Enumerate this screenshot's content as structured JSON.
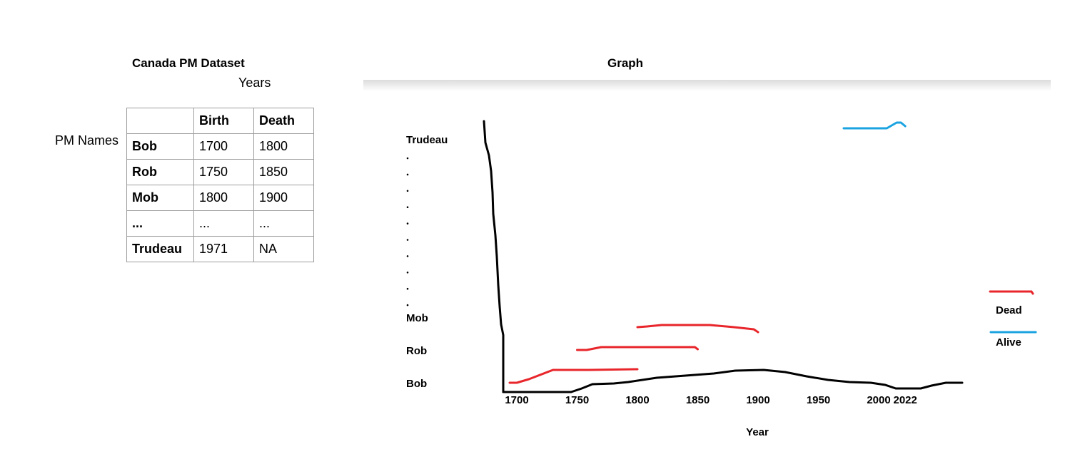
{
  "dataset": {
    "title": "Canada PM Dataset",
    "years_label": "Years",
    "row_label": "PM Names",
    "columns": [
      "",
      "Birth",
      "Death"
    ],
    "rows": [
      [
        "Bob",
        "1700",
        "1800"
      ],
      [
        "Rob",
        "1750",
        "1850"
      ],
      [
        "Mob",
        "1800",
        "1900"
      ],
      [
        "...",
        "...",
        "..."
      ],
      [
        "Trudeau",
        "1971",
        "NA"
      ]
    ]
  },
  "graph": {
    "title": "Graph",
    "y_labels": [
      "Trudeau",
      "Mob",
      "Rob",
      "Bob"
    ],
    "x_ticks": [
      "1700",
      "1750",
      "1800",
      "1850",
      "1900",
      "1950",
      "2000",
      "2022"
    ],
    "x_label": "Year",
    "legend": [
      {
        "label": "Dead",
        "color": "#e8262b"
      },
      {
        "label": "Alive",
        "color": "#1aa3e0"
      }
    ]
  },
  "chart_data": {
    "type": "line",
    "xlabel": "Year",
    "ylabel": "",
    "categories": [
      "Bob",
      "Rob",
      "Mob",
      "Trudeau"
    ],
    "series": [
      {
        "name": "Dead",
        "color": "#e8262b",
        "segments": [
          {
            "pm": "Bob",
            "start": 1700,
            "end": 1800
          },
          {
            "pm": "Rob",
            "start": 1750,
            "end": 1850
          },
          {
            "pm": "Mob",
            "start": 1800,
            "end": 1900
          }
        ]
      },
      {
        "name": "Alive",
        "color": "#1aa3e0",
        "segments": [
          {
            "pm": "Trudeau",
            "start": 1971,
            "end": 2022
          }
        ]
      }
    ]
  }
}
